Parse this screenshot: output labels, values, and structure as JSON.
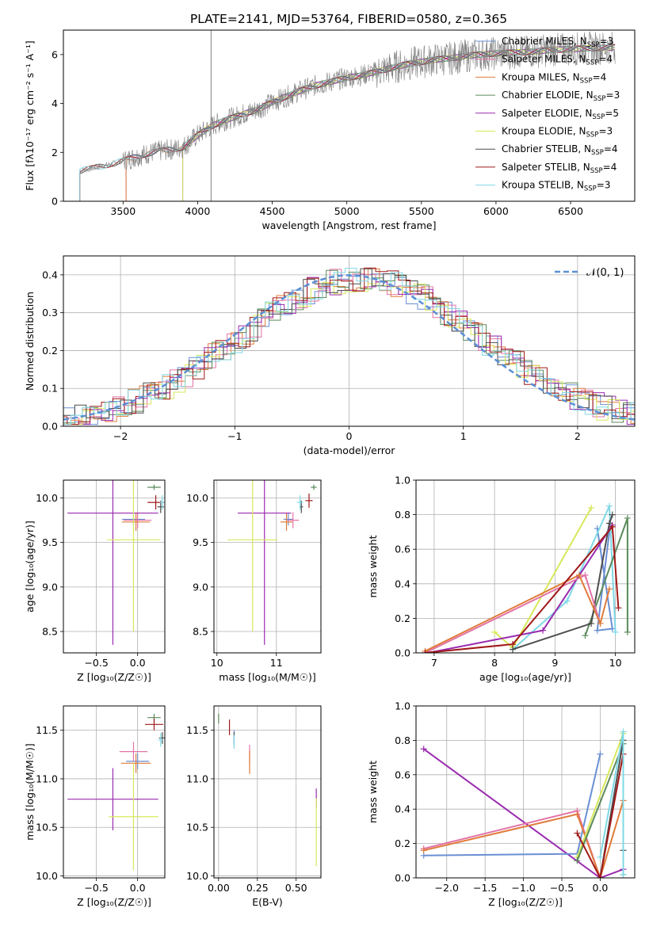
{
  "figure": {
    "title": "PLATE=2141, MJD=53764, FIBERID=0580, z=0.365"
  },
  "colors": {
    "Chabrier MILES": "#6a8fd4",
    "Salpeter MILES": "#e273a6",
    "Kroupa MILES": "#e07b3a",
    "Chabrier ELODIE": "#5b8a5b",
    "Salpeter ELODIE": "#9a2ab0",
    "Kroupa ELODIE": "#d8e85a",
    "Chabrier STELIB": "#4d4d4d",
    "Salpeter STELIB": "#a01818",
    "Kroupa STELIB": "#7fd8e6"
  },
  "chart_data": [
    {
      "id": "spectrum",
      "type": "line",
      "xlabel": "wavelength [Angstrom, rest frame]",
      "ylabel": "Flux [fλ10⁻¹⁷ erg cm⁻² s⁻¹ A⁻¹]",
      "xlim": [
        3100,
        6930
      ],
      "ylim": [
        0,
        7.0
      ],
      "xticks": [
        3500,
        4000,
        4500,
        5000,
        5500,
        6000,
        6500
      ],
      "yticks": [
        0,
        2,
        4,
        6
      ],
      "grid": false,
      "legend_position": "right",
      "vline": 4090,
      "observed_coverage": [
        3210,
        6800
      ],
      "continuum": [
        [
          3210,
          1.25
        ],
        [
          3300,
          1.35
        ],
        [
          3400,
          1.5
        ],
        [
          3500,
          1.65
        ],
        [
          3600,
          1.85
        ],
        [
          3700,
          2.0
        ],
        [
          3800,
          2.1
        ],
        [
          3900,
          2.2
        ],
        [
          4000,
          2.7
        ],
        [
          4100,
          3.1
        ],
        [
          4200,
          3.35
        ],
        [
          4300,
          3.55
        ],
        [
          4400,
          3.75
        ],
        [
          4500,
          4.05
        ],
        [
          4600,
          4.3
        ],
        [
          4700,
          4.55
        ],
        [
          4800,
          4.75
        ],
        [
          4900,
          4.9
        ],
        [
          5000,
          5.05
        ],
        [
          5100,
          5.15
        ],
        [
          5200,
          5.3
        ],
        [
          5300,
          5.45
        ],
        [
          5400,
          5.6
        ],
        [
          5500,
          5.7
        ],
        [
          5600,
          5.8
        ],
        [
          5700,
          5.85
        ],
        [
          5800,
          5.95
        ],
        [
          5900,
          6.0
        ],
        [
          6000,
          6.05
        ],
        [
          6200,
          6.1
        ],
        [
          6400,
          6.2
        ],
        [
          6600,
          6.25
        ],
        [
          6800,
          6.3
        ]
      ],
      "series": [
        {
          "name": "Chabrier MILES, N_SSP=3",
          "nssp": "3",
          "key": "Chabrier MILES",
          "start": 3520
        },
        {
          "name": "Salpeter MILES, N_SSP=4",
          "nssp": "4",
          "key": "Salpeter MILES",
          "start": 3520
        },
        {
          "name": "Kroupa MILES, N_SSP=4",
          "nssp": "4",
          "key": "Kroupa MILES",
          "start": 3520
        },
        {
          "name": "Chabrier ELODIE, N_SSP=3",
          "nssp": "3",
          "key": "Chabrier ELODIE",
          "start": 3900
        },
        {
          "name": "Salpeter ELODIE, N_SSP=5",
          "nssp": "5",
          "key": "Salpeter ELODIE",
          "start": 3900
        },
        {
          "name": "Kroupa ELODIE, N_SSP=3",
          "nssp": "3",
          "key": "Kroupa ELODIE",
          "start": 3900
        },
        {
          "name": "Chabrier STELIB, N_SSP=4",
          "nssp": "4",
          "key": "Chabrier STELIB",
          "start": 3210
        },
        {
          "name": "Salpeter STELIB, N_SSP=4",
          "nssp": "4",
          "key": "Salpeter STELIB",
          "start": 3210
        },
        {
          "name": "Kroupa STELIB, N_SSP=3",
          "nssp": "3",
          "key": "Kroupa STELIB",
          "start": 3210
        }
      ]
    },
    {
      "id": "residuals",
      "type": "area",
      "xlabel": "(data-model)/error",
      "ylabel": "Normed distribution",
      "xlim": [
        -2.5,
        2.5
      ],
      "ylim": [
        0,
        0.45
      ],
      "xticks": [
        -2,
        -1,
        0,
        1,
        2
      ],
      "xticklabels": [
        "−2",
        "−1",
        "0",
        "1",
        "2"
      ],
      "yticks": [
        0.0,
        0.1,
        0.2,
        0.3,
        0.4
      ],
      "grid": true,
      "bin_width": 0.1,
      "legend": "𝒩(0, 1)",
      "legend_position": "top-right",
      "gaussian": {
        "mean": 0,
        "sigma": 1
      }
    },
    {
      "id": "age_vs_Z",
      "type": "scatter",
      "xlabel": "Z [log₁₀(Z/Z☉)]",
      "ylabel": "age [log₁₀(age/yr)]",
      "xlim": [
        -0.9,
        0.33
      ],
      "ylim": [
        8.26,
        10.2
      ],
      "xticks": [
        -0.5,
        0.0
      ],
      "xticklabels": [
        "−0.5",
        "0.0"
      ],
      "yticks": [
        8.5,
        9.0,
        9.5,
        10.0
      ],
      "grid": true,
      "points": [
        {
          "key": "Chabrier MILES",
          "x": -0.05,
          "y": 9.76,
          "xerr": 0.14,
          "yerr": 0.07
        },
        {
          "key": "Salpeter MILES",
          "x": 0.0,
          "y": 9.75,
          "xerr": 0.17,
          "yerr": 0.09
        },
        {
          "key": "Kroupa MILES",
          "x": -0.02,
          "y": 9.73,
          "xerr": 0.17,
          "yerr": 0.1
        },
        {
          "key": "Chabrier ELODIE",
          "x": 0.2,
          "y": 10.12,
          "xerr": 0.08,
          "yerr": 0.03
        },
        {
          "key": "Salpeter ELODIE",
          "x": -0.3,
          "y": 9.83,
          "xerr": 0.55,
          "yerr": 1.48
        },
        {
          "key": "Kroupa ELODIE",
          "x": -0.05,
          "y": 9.53,
          "xerr": 0.32,
          "yerr": 1.03
        },
        {
          "key": "Chabrier STELIB",
          "x": 0.28,
          "y": 9.9,
          "xerr": 0.04,
          "yerr": 0.07
        },
        {
          "key": "Salpeter STELIB",
          "x": 0.22,
          "y": 9.95,
          "xerr": 0.1,
          "yerr": 0.08
        },
        {
          "key": "Kroupa STELIB",
          "x": 0.3,
          "y": 9.95,
          "xerr": 0.03,
          "yerr": 0.08
        }
      ]
    },
    {
      "id": "age_vs_mass",
      "type": "scatter",
      "xlabel": "mass [log₁₀(M/M☉)]",
      "ylabel": "",
      "xlim": [
        9.95,
        11.75
      ],
      "ylim": [
        8.26,
        10.2
      ],
      "xticks": [
        10,
        11
      ],
      "yticks": [
        8.5,
        9.0,
        9.5,
        10.0
      ],
      "grid": true,
      "points": [
        {
          "key": "Chabrier MILES",
          "x": 11.2,
          "y": 9.76,
          "xerr": 0.08,
          "yerr": 0.07
        },
        {
          "key": "Salpeter MILES",
          "x": 11.28,
          "y": 9.75,
          "xerr": 0.1,
          "yerr": 0.09
        },
        {
          "key": "Kroupa MILES",
          "x": 11.17,
          "y": 9.73,
          "xerr": 0.1,
          "yerr": 0.1
        },
        {
          "key": "Chabrier ELODIE",
          "x": 11.63,
          "y": 10.12,
          "xerr": 0.05,
          "yerr": 0.03
        },
        {
          "key": "Salpeter ELODIE",
          "x": 10.8,
          "y": 9.83,
          "xerr": 0.45,
          "yerr": 1.48
        },
        {
          "key": "Kroupa ELODIE",
          "x": 10.6,
          "y": 9.53,
          "xerr": 0.42,
          "yerr": 1.03
        },
        {
          "key": "Chabrier STELIB",
          "x": 11.42,
          "y": 9.9,
          "xerr": 0.03,
          "yerr": 0.07
        },
        {
          "key": "Salpeter STELIB",
          "x": 11.55,
          "y": 9.97,
          "xerr": 0.06,
          "yerr": 0.08
        },
        {
          "key": "Kroupa STELIB",
          "x": 11.4,
          "y": 9.95,
          "xerr": 0.05,
          "yerr": 0.08
        }
      ]
    },
    {
      "id": "weight_vs_age",
      "type": "line",
      "xlabel": "age [log₁₀(age/yr)]",
      "ylabel": "mass weight",
      "xlim": [
        6.7,
        10.32
      ],
      "ylim": [
        0,
        1.0
      ],
      "xticks": [
        7,
        8,
        9,
        10
      ],
      "yticks": [
        0.0,
        0.2,
        0.4,
        0.6,
        0.8,
        1.0
      ],
      "grid": true,
      "series": [
        {
          "key": "Kroupa ELODIE",
          "x": [
            8.0,
            8.3,
            9.6
          ],
          "y": [
            0.12,
            0.03,
            0.84
          ]
        },
        {
          "key": "Chabrier MILES",
          "x": [
            9.7,
            9.95,
            9.7,
            9.9
          ],
          "y": [
            0.72,
            0.14,
            0.13,
            0.7
          ]
        },
        {
          "key": "Kroupa STELIB",
          "x": [
            8.3,
            9.2,
            9.9,
            10.0
          ],
          "y": [
            0.02,
            0.3,
            0.85,
            0.12
          ]
        },
        {
          "key": "Chabrier ELODIE",
          "x": [
            9.5,
            10.2,
            10.2
          ],
          "y": [
            0.1,
            0.78,
            0.12
          ]
        },
        {
          "key": "Chabrier STELIB",
          "x": [
            8.3,
            9.6,
            9.9,
            9.95
          ],
          "y": [
            0.02,
            0.17,
            0.75,
            0.8
          ]
        },
        {
          "key": "Salpeter ELODIE",
          "x": [
            6.9,
            8.8,
            9.95
          ],
          "y": [
            0.0,
            0.13,
            0.74
          ]
        },
        {
          "key": "Salpeter MILES",
          "x": [
            6.85,
            9.5,
            9.75
          ],
          "y": [
            0.0,
            0.45,
            0.17
          ]
        },
        {
          "key": "Kroupa MILES",
          "x": [
            6.85,
            9.4,
            9.75,
            9.9
          ],
          "y": [
            0.01,
            0.45,
            0.17,
            0.37
          ]
        },
        {
          "key": "Salpeter STELIB",
          "x": [
            6.85,
            8.3,
            9.95,
            10.05
          ],
          "y": [
            0.0,
            0.05,
            0.73,
            0.26
          ]
        }
      ]
    },
    {
      "id": "mass_vs_Z",
      "type": "scatter",
      "xlabel": "Z [log₁₀(Z/Z☉)]",
      "ylabel": "mass [log₁₀(M/M☉)]",
      "xlim": [
        -0.9,
        0.33
      ],
      "ylim": [
        9.98,
        11.75
      ],
      "xticks": [
        -0.5,
        0.0
      ],
      "xticklabels": [
        "−0.5",
        "0.0"
      ],
      "yticks": [
        10.0,
        10.5,
        11.0,
        11.5
      ],
      "grid": true,
      "points": [
        {
          "key": "Chabrier MILES",
          "x": 0.0,
          "y": 11.18,
          "xerr": 0.14,
          "yerr": 0.08
        },
        {
          "key": "Salpeter MILES",
          "x": -0.05,
          "y": 11.28,
          "xerr": 0.17,
          "yerr": 0.1
        },
        {
          "key": "Kroupa MILES",
          "x": -0.02,
          "y": 11.16,
          "xerr": 0.18,
          "yerr": 0.1
        },
        {
          "key": "Chabrier ELODIE",
          "x": 0.2,
          "y": 11.63,
          "xerr": 0.08,
          "yerr": 0.04
        },
        {
          "key": "Salpeter ELODIE",
          "x": -0.3,
          "y": 10.79,
          "xerr": 0.55,
          "yerr": 0.32
        },
        {
          "key": "Kroupa ELODIE",
          "x": -0.05,
          "y": 10.61,
          "xerr": 0.3,
          "yerr": 0.55
        },
        {
          "key": "Chabrier STELIB",
          "x": 0.3,
          "y": 11.42,
          "xerr": 0.04,
          "yerr": 0.06
        },
        {
          "key": "Salpeter STELIB",
          "x": 0.2,
          "y": 11.56,
          "xerr": 0.11,
          "yerr": 0.06
        },
        {
          "key": "Kroupa STELIB",
          "x": 0.28,
          "y": 11.4,
          "xerr": 0.03,
          "yerr": 0.07
        }
      ]
    },
    {
      "id": "mass_vs_ebv",
      "type": "scatter",
      "xlabel": "E(B-V)",
      "ylabel": "",
      "xlim": [
        -0.03,
        0.66
      ],
      "ylim": [
        9.98,
        11.75
      ],
      "xticks": [
        0.0,
        0.25,
        0.5
      ],
      "xticklabels": [
        "0.00",
        "0.25",
        "0.50"
      ],
      "yticks": [
        10.0,
        10.5,
        11.0,
        11.5
      ],
      "grid": true,
      "points": [
        {
          "key": "Chabrier MILES",
          "x": 0.1,
          "y": 11.42,
          "xerr": 0,
          "yerr": 0.08
        },
        {
          "key": "Salpeter MILES",
          "x": 0.2,
          "y": 11.25,
          "xerr": 0,
          "yerr": 0.1
        },
        {
          "key": "Kroupa MILES",
          "x": 0.2,
          "y": 11.17,
          "xerr": 0,
          "yerr": 0.12
        },
        {
          "key": "Chabrier ELODIE",
          "x": 0.0,
          "y": 11.62,
          "xerr": 0,
          "yerr": 0.05
        },
        {
          "key": "Salpeter ELODIE",
          "x": 0.63,
          "y": 10.8,
          "xerr": 0,
          "yerr": 0.1
        },
        {
          "key": "Kroupa ELODIE",
          "x": 0.63,
          "y": 10.45,
          "xerr": 0,
          "yerr": 0.35
        },
        {
          "key": "Chabrier STELIB",
          "x": 0.1,
          "y": 11.42,
          "xerr": 0,
          "yerr": 0.06
        },
        {
          "key": "Salpeter STELIB",
          "x": 0.07,
          "y": 11.53,
          "xerr": 0,
          "yerr": 0.08
        },
        {
          "key": "Kroupa STELIB",
          "x": 0.1,
          "y": 11.38,
          "xerr": 0,
          "yerr": 0.07
        }
      ]
    },
    {
      "id": "weight_vs_Z",
      "type": "line",
      "xlabel": "Z [log₁₀(Z/Z☉)]",
      "ylabel": "mass weight",
      "xlim": [
        -2.4,
        0.45
      ],
      "ylim": [
        0,
        1.0
      ],
      "xticks": [
        -2.0,
        -1.5,
        -1.0,
        -0.5,
        0.0
      ],
      "xticklabels": [
        "−2.0",
        "−1.5",
        "−1.0",
        "−0.5",
        "0.0"
      ],
      "yticks": [
        0.0,
        0.2,
        0.4,
        0.6,
        0.8,
        1.0
      ],
      "grid": true,
      "series": [
        {
          "key": "Salpeter ELODIE",
          "x": [
            -2.3,
            0.0,
            0.3
          ],
          "y": [
            0.75,
            0.0,
            0.05
          ]
        },
        {
          "key": "Chabrier MILES",
          "x": [
            -2.3,
            -0.3,
            0.0
          ],
          "y": [
            0.13,
            0.14,
            0.72
          ]
        },
        {
          "key": "Salpeter MILES",
          "x": [
            -2.3,
            -0.3,
            0.0
          ],
          "y": [
            0.17,
            0.39,
            0.0
          ]
        },
        {
          "key": "Kroupa MILES",
          "x": [
            -2.3,
            -0.3,
            0.0,
            0.3
          ],
          "y": [
            0.16,
            0.37,
            0.0,
            0.45
          ]
        },
        {
          "key": "Kroupa ELODIE",
          "x": [
            -0.3,
            0.3
          ],
          "y": [
            0.12,
            0.84
          ]
        },
        {
          "key": "Chabrier ELODIE",
          "x": [
            -0.3,
            0.3,
            0.3
          ],
          "y": [
            0.1,
            0.78,
            0.02
          ]
        },
        {
          "key": "Chabrier STELIB",
          "x": [
            0.0,
            0.3,
            0.3
          ],
          "y": [
            0.0,
            0.8,
            0.16
          ]
        },
        {
          "key": "Salpeter STELIB",
          "x": [
            -0.3,
            0.0,
            0.3
          ],
          "y": [
            0.26,
            0.0,
            0.72
          ]
        },
        {
          "key": "Kroupa STELIB",
          "x": [
            0.0,
            0.3,
            0.3
          ],
          "y": [
            0.12,
            0.85,
            0.02
          ]
        }
      ]
    }
  ]
}
